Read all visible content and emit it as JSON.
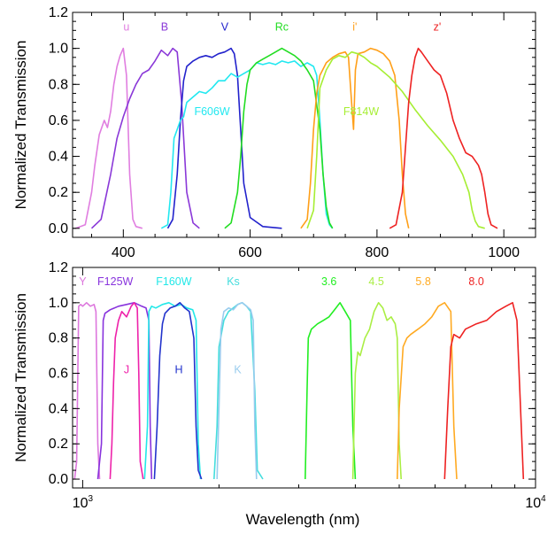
{
  "chart_data": [
    {
      "type": "line",
      "panel": "top",
      "xscale": "linear",
      "xlim": [
        320,
        1050
      ],
      "ylim": [
        -0.05,
        1.2
      ],
      "ylabel": "Normalized Transmission",
      "xlabel": "",
      "xticks": [
        400,
        600,
        800,
        1000
      ],
      "xtick_labels": [
        "400",
        "600",
        "800",
        "1000"
      ],
      "yticks": [
        0.0,
        0.2,
        0.4,
        0.6,
        0.8,
        1.0,
        1.2
      ],
      "ytick_labels": [
        "0.0",
        "0.2",
        "0.4",
        "0.6",
        "0.8",
        "1.0",
        "1.2"
      ],
      "series": [
        {
          "name": "u",
          "label": "u",
          "label_at": [
            405,
            1.1
          ],
          "color": "#e07ee0",
          "x": [
            325,
            340,
            350,
            355,
            362,
            370,
            375,
            380,
            385,
            390,
            395,
            400,
            405,
            410,
            415,
            420,
            430
          ],
          "y": [
            0,
            0.02,
            0.2,
            0.35,
            0.52,
            0.6,
            0.56,
            0.65,
            0.8,
            0.9,
            0.96,
            1.0,
            0.85,
            0.3,
            0.05,
            0.01,
            0
          ]
        },
        {
          "name": "B",
          "label": "B",
          "label_at": [
            465,
            1.1
          ],
          "color": "#8a38d8",
          "x": [
            350,
            365,
            380,
            390,
            400,
            410,
            420,
            430,
            440,
            450,
            460,
            470,
            478,
            485,
            492,
            500,
            510,
            520
          ],
          "y": [
            0,
            0.05,
            0.3,
            0.5,
            0.62,
            0.72,
            0.8,
            0.86,
            0.88,
            0.93,
            0.99,
            0.96,
            1.0,
            0.98,
            0.7,
            0.2,
            0.03,
            0
          ]
        },
        {
          "name": "V",
          "label": "V",
          "label_at": [
            560,
            1.1
          ],
          "color": "#2222cc",
          "x": [
            470,
            478,
            485,
            490,
            495,
            500,
            510,
            520,
            530,
            540,
            550,
            560,
            570,
            575,
            580,
            585,
            590,
            600,
            620,
            650
          ],
          "y": [
            0,
            0.05,
            0.3,
            0.6,
            0.82,
            0.9,
            0.93,
            0.95,
            0.96,
            0.95,
            0.97,
            0.98,
            1.0,
            0.97,
            0.85,
            0.55,
            0.25,
            0.06,
            0.01,
            0
          ]
        },
        {
          "name": "F606W",
          "label": "F606W",
          "label_at": [
            540,
            0.63
          ],
          "color": "#22e8f0",
          "x": [
            460,
            470,
            475,
            480,
            485,
            490,
            495,
            500,
            510,
            520,
            530,
            540,
            550,
            560,
            570,
            580,
            590,
            600,
            610,
            620,
            630,
            640,
            650,
            660,
            670,
            680,
            690,
            700,
            705,
            710,
            715,
            720,
            725,
            730
          ],
          "y": [
            0,
            0.02,
            0.2,
            0.5,
            0.55,
            0.6,
            0.62,
            0.7,
            0.73,
            0.76,
            0.75,
            0.78,
            0.82,
            0.82,
            0.86,
            0.84,
            0.86,
            0.88,
            0.92,
            0.91,
            0.92,
            0.91,
            0.93,
            0.92,
            0.93,
            0.9,
            0.92,
            0.9,
            0.85,
            0.6,
            0.3,
            0.08,
            0.02,
            0
          ]
        },
        {
          "name": "Rc",
          "label": "Rc",
          "label_at": [
            650,
            1.1
          ],
          "color": "#22dd22",
          "x": [
            560,
            570,
            580,
            585,
            590,
            595,
            600,
            610,
            620,
            630,
            640,
            650,
            660,
            670,
            680,
            690,
            700,
            710,
            715,
            720,
            725,
            730
          ],
          "y": [
            0,
            0.03,
            0.2,
            0.4,
            0.65,
            0.8,
            0.88,
            0.92,
            0.94,
            0.96,
            0.98,
            1.0,
            0.98,
            0.96,
            0.93,
            0.88,
            0.82,
            0.55,
            0.3,
            0.12,
            0.03,
            0
          ]
        },
        {
          "name": "i'",
          "label": "i'",
          "label_at": [
            765,
            1.1
          ],
          "color": "#ff9f18",
          "x": [
            680,
            690,
            695,
            700,
            705,
            710,
            720,
            730,
            740,
            750,
            755,
            760,
            763,
            766,
            770,
            780,
            790,
            800,
            810,
            820,
            828,
            835,
            840,
            845,
            850
          ],
          "y": [
            0,
            0.05,
            0.25,
            0.55,
            0.75,
            0.85,
            0.92,
            0.95,
            0.97,
            0.98,
            0.95,
            0.7,
            0.55,
            0.88,
            0.97,
            0.98,
            1.0,
            0.99,
            0.97,
            0.93,
            0.85,
            0.6,
            0.3,
            0.08,
            0
          ]
        },
        {
          "name": "F814W",
          "label": "F814W",
          "label_at": [
            775,
            0.63
          ],
          "color": "#a6ee33",
          "x": [
            690,
            700,
            705,
            710,
            720,
            730,
            740,
            750,
            760,
            770,
            780,
            790,
            800,
            820,
            840,
            860,
            880,
            900,
            920,
            935,
            945,
            950,
            955,
            960,
            970
          ],
          "y": [
            0,
            0.1,
            0.4,
            0.78,
            0.88,
            0.94,
            0.96,
            0.95,
            0.98,
            0.97,
            0.95,
            0.92,
            0.9,
            0.84,
            0.76,
            0.66,
            0.57,
            0.49,
            0.4,
            0.3,
            0.2,
            0.1,
            0.04,
            0.01,
            0
          ]
        },
        {
          "name": "z'",
          "label": "z'",
          "label_at": [
            895,
            1.1
          ],
          "color": "#ee2222",
          "x": [
            820,
            830,
            840,
            845,
            850,
            855,
            860,
            865,
            870,
            880,
            890,
            900,
            910,
            920,
            930,
            940,
            950,
            960,
            965,
            970,
            975,
            980,
            990
          ],
          "y": [
            0,
            0.02,
            0.2,
            0.45,
            0.7,
            0.85,
            0.95,
            1.0,
            0.98,
            0.93,
            0.88,
            0.85,
            0.75,
            0.6,
            0.5,
            0.42,
            0.4,
            0.35,
            0.3,
            0.2,
            0.08,
            0.02,
            0
          ]
        }
      ]
    },
    {
      "type": "line",
      "panel": "bottom",
      "xscale": "log",
      "xlim": [
        950,
        10000
      ],
      "ylim": [
        -0.05,
        1.2
      ],
      "ylabel": "Normalized Transmission",
      "xlabel": "Wavelength (nm)",
      "xticks": [
        1000,
        10000
      ],
      "xtick_labels": [
        {
          "base": "10",
          "exp": "3"
        },
        {
          "base": "10",
          "exp": "4"
        }
      ],
      "yticks": [
        0.0,
        0.2,
        0.4,
        0.6,
        0.8,
        1.0,
        1.2
      ],
      "ytick_labels": [
        "0.0",
        "0.2",
        "0.4",
        "0.6",
        "0.8",
        "1.0",
        "1.2"
      ],
      "series": [
        {
          "name": "Y",
          "label": "Y",
          "label_at": [
            1000,
            1.1
          ],
          "color": "#dd77dd",
          "x": [
            960,
            970,
            980,
            990,
            1000,
            1020,
            1040,
            1060,
            1070,
            1080,
            1090
          ],
          "y": [
            0,
            0.1,
            0.98,
            0.99,
            0.98,
            1.0,
            0.98,
            0.99,
            0.95,
            0.2,
            0
          ]
        },
        {
          "name": "F125W",
          "label": "F125W",
          "label_at": [
            1180,
            1.1
          ],
          "color": "#8833dd",
          "x": [
            1080,
            1100,
            1110,
            1120,
            1150,
            1200,
            1250,
            1300,
            1350,
            1380,
            1400,
            1410,
            1420
          ],
          "y": [
            0,
            0.2,
            0.9,
            0.94,
            0.96,
            0.98,
            0.99,
            1.0,
            0.98,
            0.97,
            0.9,
            0.3,
            0
          ]
        },
        {
          "name": "J",
          "label": "J",
          "label_at": [
            1250,
            0.6
          ],
          "color": "#ee22aa",
          "x": [
            1150,
            1160,
            1170,
            1180,
            1200,
            1220,
            1250,
            1280,
            1300,
            1320,
            1330,
            1340,
            1360
          ],
          "y": [
            0,
            0.2,
            0.55,
            0.8,
            0.9,
            0.95,
            0.92,
            0.98,
            1.0,
            0.97,
            0.6,
            0.1,
            0
          ]
        },
        {
          "name": "F160W",
          "label": "F160W",
          "label_at": [
            1590,
            1.1
          ],
          "color": "#22e8e8",
          "x": [
            1370,
            1390,
            1400,
            1420,
            1450,
            1500,
            1550,
            1600,
            1650,
            1700,
            1750,
            1780,
            1800,
            1820
          ],
          "y": [
            0,
            0.3,
            0.95,
            0.98,
            0.97,
            0.99,
            1.0,
            0.98,
            0.99,
            0.97,
            0.96,
            0.9,
            0.2,
            0
          ]
        },
        {
          "name": "H",
          "label": "H",
          "label_at": [
            1630,
            0.6
          ],
          "color": "#2233cc",
          "x": [
            1440,
            1460,
            1480,
            1500,
            1520,
            1560,
            1600,
            1640,
            1680,
            1720,
            1760,
            1780,
            1800,
            1830
          ],
          "y": [
            0,
            0.3,
            0.7,
            0.88,
            0.94,
            0.97,
            0.98,
            1.0,
            0.97,
            0.95,
            0.8,
            0.3,
            0.05,
            0
          ]
        },
        {
          "name": "Ks",
          "label": "Ks",
          "label_at": [
            2150,
            1.1
          ],
          "color": "#44dddd",
          "x": [
            1950,
            1980,
            2000,
            2050,
            2100,
            2150,
            2200,
            2250,
            2300,
            2350,
            2400,
            2430,
            2500
          ],
          "y": [
            0,
            0.3,
            0.75,
            0.9,
            0.95,
            0.97,
            0.99,
            1.0,
            0.98,
            0.95,
            0.5,
            0.05,
            0
          ]
        },
        {
          "name": "K",
          "label": "K",
          "label_at": [
            2200,
            0.6
          ],
          "color": "#99ccee",
          "x": [
            1980,
            2000,
            2020,
            2050,
            2100,
            2150,
            2200,
            2250,
            2300,
            2350,
            2380,
            2400,
            2420
          ],
          "y": [
            0,
            0.4,
            0.85,
            0.95,
            0.97,
            0.96,
            0.99,
            1.0,
            0.98,
            0.96,
            0.9,
            0.3,
            0
          ]
        },
        {
          "name": "3.6",
          "label": "3.6",
          "label_at": [
            3500,
            1.1
          ],
          "color": "#22ee22",
          "x": [
            3100,
            3130,
            3150,
            3200,
            3300,
            3400,
            3500,
            3600,
            3700,
            3800,
            3900,
            3950,
            4000
          ],
          "y": [
            0,
            0.5,
            0.8,
            0.85,
            0.88,
            0.9,
            0.92,
            0.96,
            1.0,
            0.95,
            0.9,
            0.3,
            0
          ]
        },
        {
          "name": "4.5",
          "label": "4.5",
          "label_at": [
            4450,
            1.1
          ],
          "color": "#aaee44",
          "x": [
            3950,
            4000,
            4050,
            4100,
            4200,
            4300,
            4400,
            4500,
            4600,
            4700,
            4800,
            4900,
            4950,
            5000,
            5050
          ],
          "y": [
            0,
            0.6,
            0.72,
            0.7,
            0.8,
            0.85,
            0.95,
            1.0,
            0.97,
            0.9,
            0.92,
            0.88,
            0.8,
            0.2,
            0
          ]
        },
        {
          "name": "5.8",
          "label": "5.8",
          "label_at": [
            5650,
            1.1
          ],
          "color": "#ffaa22",
          "x": [
            4950,
            5000,
            5100,
            5200,
            5300,
            5500,
            5700,
            5900,
            6100,
            6300,
            6500,
            6600,
            6700
          ],
          "y": [
            0,
            0.4,
            0.75,
            0.8,
            0.82,
            0.85,
            0.88,
            0.92,
            0.98,
            1.0,
            0.95,
            0.3,
            0
          ]
        },
        {
          "name": "8.0",
          "label": "8.0",
          "label_at": [
            7400,
            1.1
          ],
          "color": "#ee2222",
          "x": [
            6300,
            6400,
            6500,
            6600,
            6800,
            7000,
            7400,
            7800,
            8200,
            8600,
            8900,
            9100,
            9300,
            9400
          ],
          "y": [
            0,
            0.4,
            0.75,
            0.82,
            0.8,
            0.85,
            0.88,
            0.9,
            0.95,
            0.98,
            1.0,
            0.9,
            0.3,
            0
          ]
        }
      ]
    }
  ]
}
